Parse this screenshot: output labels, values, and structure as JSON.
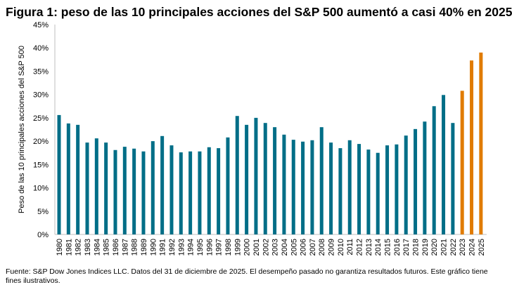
{
  "title": "Figura 1: peso de las 10 principales acciones del S&P 500 aumentó a casi 40% en 2025",
  "source": "Fuente: S&P Dow Jones Indices LLC. Datos del 31 de diciembre de 2025. El desempeño pasado no garantiza resultados futuros. Este gráfico tiene fines ilustrativos.",
  "colors": {
    "historical": "#006e87",
    "highlight": "#e07b00",
    "axis": "#bfbfbf"
  },
  "chart_data": {
    "type": "bar",
    "title": "Figura 1: peso de las 10 principales acciones del S&P 500 aumentó a casi 40% en 2025",
    "xlabel": "",
    "ylabel": "Peso de las 10 principales acciones del S&P 500",
    "ylim": [
      0,
      45
    ],
    "yticks": [
      "0%",
      "5%",
      "10%",
      "15%",
      "20%",
      "25%",
      "30%",
      "35%",
      "40%",
      "45%"
    ],
    "grid": false,
    "categories": [
      "1980",
      "1981",
      "1982",
      "1983",
      "1984",
      "1985",
      "1986",
      "1987",
      "1988",
      "1989",
      "1990",
      "1991",
      "1992",
      "1993",
      "1994",
      "1995",
      "1996",
      "1997",
      "1998",
      "1999",
      "2000",
      "2001",
      "2002",
      "2003",
      "2004",
      "2005",
      "2006",
      "2007",
      "2008",
      "2009",
      "2010",
      "2011",
      "2012",
      "2013",
      "2014",
      "2015",
      "2016",
      "2017",
      "2018",
      "2019",
      "2020",
      "2021",
      "2022",
      "2023",
      "2024",
      "2025"
    ],
    "values": [
      25.6,
      23.8,
      23.5,
      19.7,
      20.6,
      19.7,
      18.1,
      18.8,
      18.4,
      17.8,
      20.0,
      21.1,
      19.1,
      17.6,
      17.8,
      17.8,
      18.7,
      18.5,
      20.8,
      25.4,
      23.5,
      25.0,
      23.9,
      23.0,
      21.4,
      20.3,
      19.9,
      20.2,
      23.0,
      19.7,
      18.5,
      20.2,
      19.4,
      18.2,
      17.5,
      19.1,
      19.3,
      21.2,
      22.6,
      24.2,
      27.5,
      29.9,
      23.9,
      30.8,
      37.3,
      39.0
    ],
    "highlighted_categories": [
      "2023",
      "2024",
      "2025"
    ]
  }
}
